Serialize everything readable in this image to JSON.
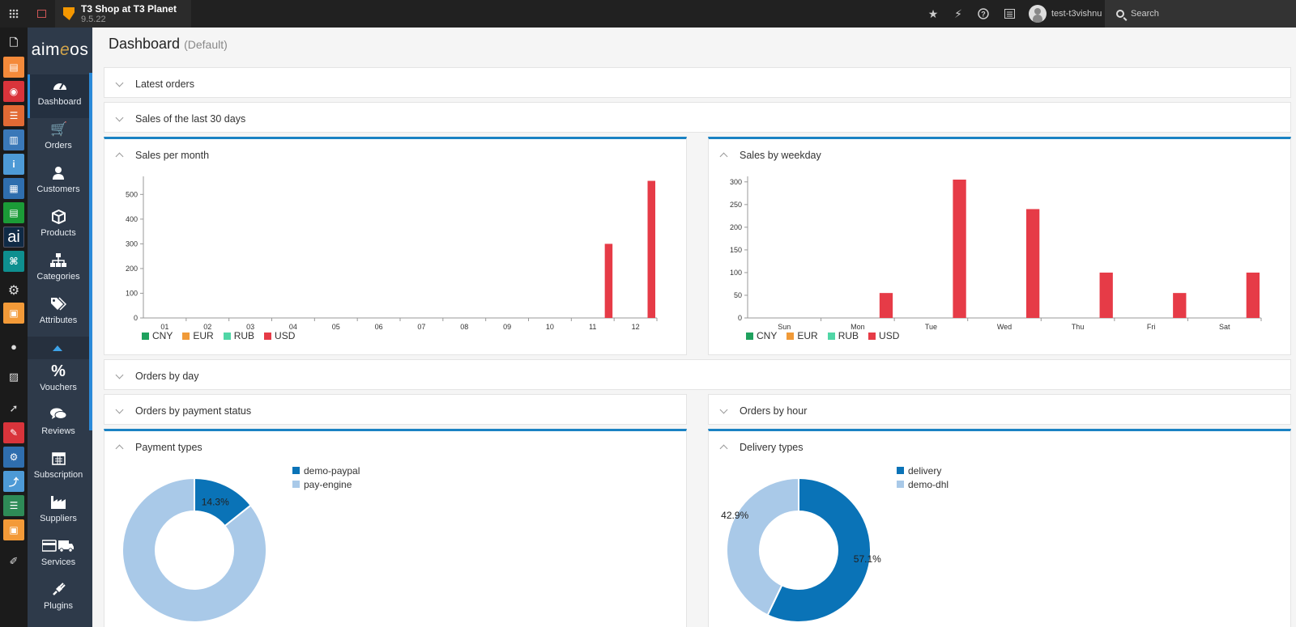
{
  "topbar": {
    "site_name": "T3 Shop at T3 Planet",
    "site_version": "9.5.22",
    "username": "test-t3vishnu",
    "search_label": "Search",
    "icons": [
      "star-icon",
      "bolt-icon",
      "help-icon",
      "list-icon"
    ]
  },
  "brand": {
    "pre": "aim",
    "accent": "e",
    "post": "os"
  },
  "sidebar": {
    "items": [
      {
        "label": "Dashboard",
        "icon": "dashboard-icon",
        "active": true
      },
      {
        "label": "Orders",
        "icon": "cart-icon"
      },
      {
        "label": "Customers",
        "icon": "user-icon"
      },
      {
        "label": "Products",
        "icon": "box-icon"
      },
      {
        "label": "Categories",
        "icon": "sitemap-icon"
      },
      {
        "label": "Attributes",
        "icon": "tags-icon"
      },
      {
        "label": "Vouchers",
        "icon": "percent-icon"
      },
      {
        "label": "Reviews",
        "icon": "comments-icon"
      },
      {
        "label": "Subscription",
        "icon": "calendar-icon"
      },
      {
        "label": "Suppliers",
        "icon": "factory-icon"
      },
      {
        "label": "Services",
        "icon": "truck-icon"
      },
      {
        "label": "Plugins",
        "icon": "plug-icon"
      }
    ]
  },
  "page": {
    "title": "Dashboard",
    "subtitle": "(Default)"
  },
  "panels": {
    "latest_orders": "Latest orders",
    "sales_30": "Sales of the last 30 days",
    "sales_month": "Sales per month",
    "sales_weekday": "Sales by weekday",
    "orders_day": "Orders by day",
    "orders_payment": "Orders by payment status",
    "orders_hour": "Orders by hour",
    "payment_types": "Payment types",
    "delivery_types": "Delivery types"
  },
  "colors": {
    "CNY": "#1fa15e",
    "EUR": "#f09a38",
    "RUB": "#50d6a6",
    "USD": "#e63b47",
    "dark_blue": "#0a73b7",
    "light_blue": "#a9c9e8"
  },
  "chart_data": [
    {
      "type": "bar",
      "title": "Sales per month",
      "categories": [
        "01",
        "02",
        "03",
        "04",
        "05",
        "06",
        "07",
        "08",
        "09",
        "10",
        "11",
        "12"
      ],
      "series": [
        {
          "name": "CNY",
          "values": [
            0,
            0,
            0,
            0,
            0,
            0,
            0,
            0,
            0,
            0,
            0,
            0
          ]
        },
        {
          "name": "EUR",
          "values": [
            0,
            0,
            0,
            0,
            0,
            0,
            0,
            0,
            0,
            0,
            0,
            0
          ]
        },
        {
          "name": "RUB",
          "values": [
            0,
            0,
            0,
            0,
            0,
            0,
            0,
            0,
            0,
            0,
            0,
            0
          ]
        },
        {
          "name": "USD",
          "values": [
            0,
            0,
            0,
            0,
            0,
            0,
            0,
            0,
            0,
            0,
            300,
            555
          ]
        }
      ],
      "yticks": [
        "0",
        "100",
        "200",
        "300",
        "400",
        "500"
      ],
      "ylim": [
        0,
        560
      ],
      "legend": "bottom-left"
    },
    {
      "type": "bar",
      "title": "Sales by weekday",
      "categories": [
        "Sun",
        "Mon",
        "Tue",
        "Wed",
        "Thu",
        "Fri",
        "Sat"
      ],
      "series": [
        {
          "name": "CNY",
          "values": [
            0,
            0,
            0,
            0,
            0,
            0,
            0
          ]
        },
        {
          "name": "EUR",
          "values": [
            0,
            0,
            0,
            0,
            0,
            0,
            0
          ]
        },
        {
          "name": "RUB",
          "values": [
            0,
            0,
            0,
            0,
            0,
            0,
            0
          ]
        },
        {
          "name": "USD",
          "values": [
            0,
            55,
            305,
            240,
            100,
            55,
            100
          ]
        }
      ],
      "yticks": [
        "0",
        "50",
        "100",
        "150",
        "200",
        "250",
        "300"
      ],
      "ylim": [
        0,
        305
      ],
      "legend": "bottom-left"
    },
    {
      "type": "pie",
      "title": "Payment types",
      "slices": [
        {
          "label": "demo-paypal",
          "value": 14.3,
          "text": "14.3%"
        },
        {
          "label": "pay-engine",
          "value": 85.7,
          "text": "85.7%"
        }
      ]
    },
    {
      "type": "pie",
      "title": "Delivery types",
      "slices": [
        {
          "label": "delivery",
          "value": 57.1,
          "text": "57.1%"
        },
        {
          "label": "demo-dhl",
          "value": 42.9,
          "text": "42.9%"
        }
      ]
    }
  ]
}
